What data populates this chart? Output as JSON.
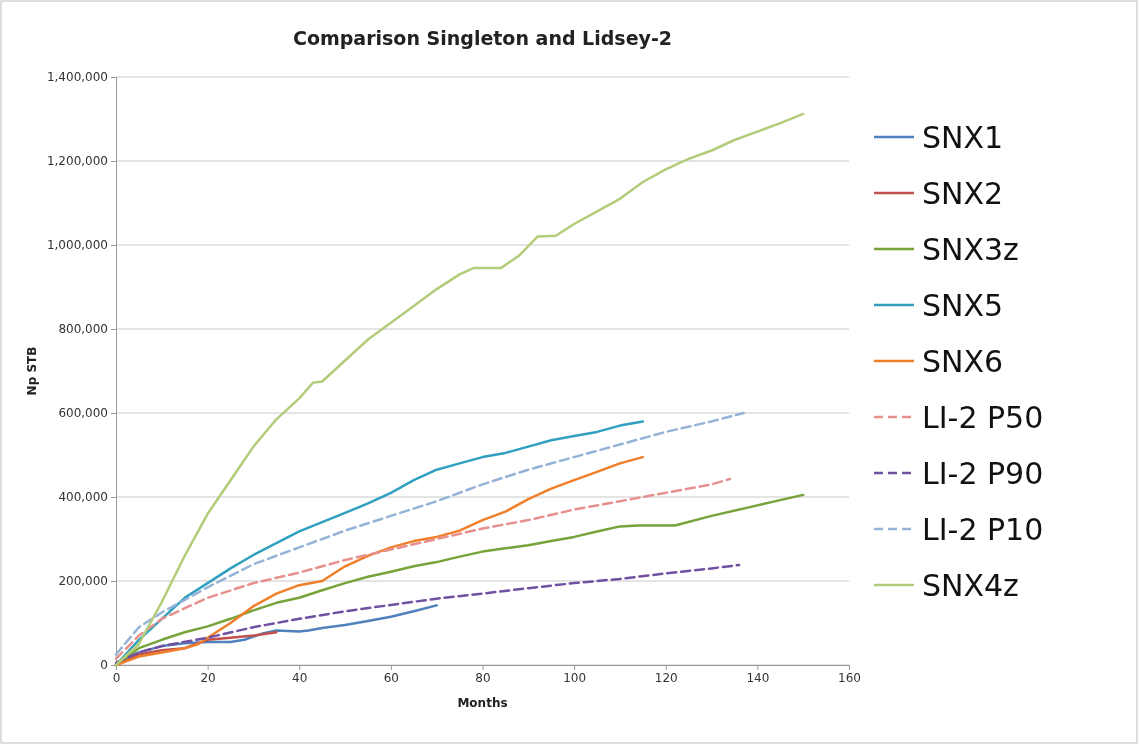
{
  "chart_data": {
    "type": "line",
    "title": "Comparison Singleton and Lidsey-2",
    "xlabel": "Months",
    "ylabel": "Np STB",
    "xlim": [
      0,
      160
    ],
    "xticks": [
      0,
      20,
      40,
      60,
      80,
      100,
      120,
      140,
      160
    ],
    "ylim": [
      0,
      1400000
    ],
    "yticks": [
      {
        "value": 0,
        "label": "0"
      },
      {
        "value": 200000,
        "label": "200,000"
      },
      {
        "value": 400000,
        "label": "400,000"
      },
      {
        "value": 600000,
        "label": "600,000"
      },
      {
        "value": 800000,
        "label": "800,000"
      },
      {
        "value": 1000000,
        "label": "1,000,000"
      },
      {
        "value": 1200000,
        "label": "1,200,000"
      },
      {
        "value": 1400000,
        "label": "1,400,000"
      }
    ],
    "grid": "y",
    "legend": "right",
    "marker": "none",
    "series": [
      {
        "name": "SNX1",
        "color": "#4f81bd",
        "line_style": "solid",
        "x": [
          0,
          5,
          10,
          15,
          20,
          25,
          28,
          32,
          35,
          40,
          42,
          45,
          50,
          55,
          60,
          65,
          70
        ],
        "values": [
          0,
          30000,
          45000,
          52000,
          55000,
          55000,
          60000,
          75000,
          82000,
          80000,
          82000,
          88000,
          95000,
          105000,
          115000,
          128000,
          142000
        ]
      },
      {
        "name": "SNX2",
        "color": "#c0504d",
        "line_style": "solid",
        "x": [
          0,
          5,
          10,
          15,
          20,
          25,
          30,
          35
        ],
        "values": [
          0,
          25000,
          35000,
          40000,
          60000,
          65000,
          70000,
          78000
        ]
      },
      {
        "name": "SNX3z",
        "color": "#77a33a",
        "line_style": "solid",
        "x": [
          0,
          5,
          10,
          15,
          20,
          25,
          30,
          35,
          40,
          45,
          50,
          55,
          60,
          65,
          70,
          75,
          80,
          85,
          90,
          95,
          100,
          105,
          110,
          114,
          122,
          130,
          140,
          150
        ],
        "values": [
          0,
          40000,
          60000,
          78000,
          92000,
          110000,
          130000,
          148000,
          160000,
          178000,
          195000,
          210000,
          222000,
          235000,
          245000,
          258000,
          270000,
          278000,
          285000,
          295000,
          305000,
          318000,
          330000,
          332000,
          332000,
          355000,
          380000,
          405000
        ]
      },
      {
        "name": "SNX5",
        "color": "#31a0c0",
        "line_style": "solid",
        "x": [
          0,
          5,
          10,
          15,
          20,
          25,
          30,
          35,
          40,
          45,
          50,
          55,
          60,
          65,
          70,
          75,
          80,
          85,
          90,
          95,
          100,
          105,
          110,
          115
        ],
        "values": [
          0,
          60000,
          110000,
          160000,
          195000,
          230000,
          262000,
          290000,
          318000,
          340000,
          362000,
          385000,
          410000,
          440000,
          465000,
          480000,
          495000,
          505000,
          520000,
          535000,
          545000,
          555000,
          570000,
          580000
        ]
      },
      {
        "name": "SNX6",
        "color": "#f07f2a",
        "line_style": "solid",
        "x": [
          0,
          5,
          10,
          15,
          18,
          20,
          25,
          30,
          35,
          40,
          45,
          50,
          55,
          60,
          65,
          70,
          75,
          80,
          85,
          90,
          95,
          100,
          105,
          110,
          115
        ],
        "values": [
          0,
          20000,
          30000,
          40000,
          50000,
          65000,
          100000,
          140000,
          170000,
          190000,
          200000,
          235000,
          260000,
          280000,
          295000,
          305000,
          320000,
          345000,
          365000,
          395000,
          420000,
          440000,
          460000,
          480000,
          495000
        ]
      },
      {
        "name": "LI-2 P50",
        "color": "#e6908e",
        "line_style": "dashed",
        "x": [
          0,
          5,
          10,
          20,
          30,
          40,
          50,
          60,
          70,
          80,
          90,
          100,
          110,
          120,
          130,
          134
        ],
        "values": [
          15000,
          70000,
          110000,
          160000,
          195000,
          220000,
          250000,
          275000,
          300000,
          325000,
          345000,
          370000,
          390000,
          410000,
          430000,
          443000
        ]
      },
      {
        "name": "LI-2 P90",
        "color": "#7050a0",
        "line_style": "dashed",
        "x": [
          0,
          5,
          10,
          20,
          30,
          40,
          50,
          60,
          70,
          80,
          90,
          100,
          110,
          120,
          130,
          136
        ],
        "values": [
          5000,
          30000,
          45000,
          65000,
          90000,
          110000,
          128000,
          143000,
          158000,
          170000,
          183000,
          195000,
          205000,
          218000,
          230000,
          238000
        ]
      },
      {
        "name": "LI-2 P10",
        "color": "#95b3d7",
        "line_style": "dashed",
        "x": [
          0,
          5,
          10,
          20,
          30,
          40,
          50,
          60,
          70,
          80,
          90,
          100,
          110,
          120,
          130,
          137
        ],
        "values": [
          25000,
          90000,
          125000,
          185000,
          240000,
          280000,
          320000,
          355000,
          390000,
          430000,
          465000,
          495000,
          525000,
          555000,
          580000,
          600000
        ]
      },
      {
        "name": "SNX4z",
        "color": "#b3cc7a",
        "line_style": "solid",
        "x": [
          0,
          5,
          10,
          15,
          20,
          25,
          30,
          35,
          40,
          43,
          45,
          50,
          55,
          60,
          65,
          70,
          75,
          78,
          84,
          88,
          92,
          96,
          100,
          105,
          110,
          115,
          120,
          125,
          130,
          135,
          140,
          145,
          150
        ],
        "values": [
          0,
          50000,
          150000,
          260000,
          360000,
          440000,
          520000,
          585000,
          635000,
          672000,
          675000,
          725000,
          775000,
          815000,
          855000,
          895000,
          930000,
          945000,
          945000,
          975000,
          1020000,
          1022000,
          1050000,
          1080000,
          1110000,
          1150000,
          1180000,
          1205000,
          1225000,
          1250000,
          1270000,
          1290000,
          1312000
        ]
      }
    ]
  }
}
